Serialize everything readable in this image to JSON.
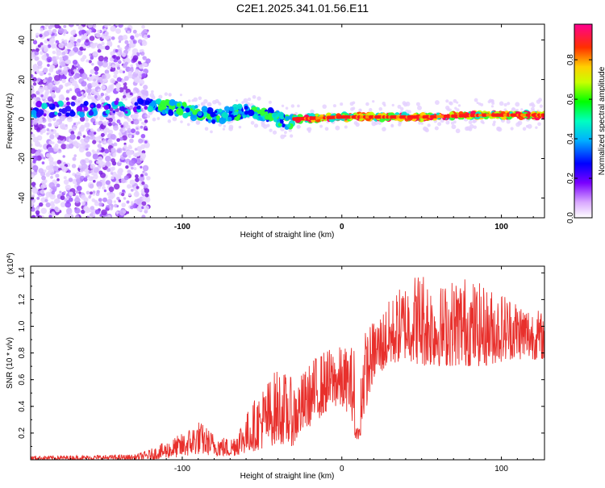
{
  "title": "C2E1.2025.341.01.56.E11",
  "chart_data": [
    {
      "type": "scatter",
      "name": "spectrogram",
      "xlabel": "Height of straight line (km)",
      "ylabel": "Frequency (Hz)",
      "xlim": [
        -195,
        127
      ],
      "ylim": [
        -50,
        48
      ],
      "xticks": [
        -100,
        0,
        100
      ],
      "yticks": [
        -40,
        -20,
        0,
        20,
        40
      ],
      "description_trend": [
        {
          "x": -190,
          "y": 5
        },
        {
          "x": -150,
          "y": 5
        },
        {
          "x": -120,
          "y": 7
        },
        {
          "x": -100,
          "y": 5
        },
        {
          "x": -80,
          "y": 1
        },
        {
          "x": -60,
          "y": 4
        },
        {
          "x": -45,
          "y": 2
        },
        {
          "x": -35,
          "y": -2
        },
        {
          "x": -30,
          "y": 0
        },
        {
          "x": 0,
          "y": 1
        },
        {
          "x": 50,
          "y": 1
        },
        {
          "x": 90,
          "y": 2
        },
        {
          "x": 127,
          "y": 2
        }
      ],
      "colorbar": {
        "label": "Normalized spectral amplitude",
        "ticks": [
          "0.0",
          "0.2",
          "0.4",
          "0.6",
          "0.8"
        ],
        "range": [
          0,
          0.98
        ]
      }
    },
    {
      "type": "line",
      "name": "snr",
      "xlabel": "Height of straight line (km)",
      "ylabel": "SNR (10 * v/v)",
      "exponent_label": "(x10",
      "exponent_sup": "4",
      "exponent_close": ")",
      "xlim": [
        -195,
        127
      ],
      "ylim": [
        0,
        1.45
      ],
      "xticks": [
        -100,
        0,
        100
      ],
      "yticks": [
        0.2,
        0.4,
        0.6,
        0.8,
        1.0,
        1.2,
        1.4
      ],
      "ytick_labels": [
        "0.2",
        "0.4",
        "0.6",
        "0.8",
        "1.0",
        "1.2",
        "1.4"
      ],
      "color": "#e8302c",
      "envelope": [
        {
          "x": -195,
          "lo": 0.0,
          "hi": 0.03
        },
        {
          "x": -130,
          "lo": 0.0,
          "hi": 0.04
        },
        {
          "x": -120,
          "lo": 0.0,
          "hi": 0.08
        },
        {
          "x": -100,
          "lo": 0.02,
          "hi": 0.2
        },
        {
          "x": -90,
          "lo": 0.04,
          "hi": 0.3
        },
        {
          "x": -80,
          "lo": 0.03,
          "hi": 0.2
        },
        {
          "x": -70,
          "lo": 0.02,
          "hi": 0.16
        },
        {
          "x": -60,
          "lo": 0.05,
          "hi": 0.35
        },
        {
          "x": -50,
          "lo": 0.08,
          "hi": 0.55
        },
        {
          "x": -40,
          "lo": 0.12,
          "hi": 0.7
        },
        {
          "x": -30,
          "lo": 0.1,
          "hi": 0.6
        },
        {
          "x": -25,
          "lo": 0.2,
          "hi": 0.65
        },
        {
          "x": -15,
          "lo": 0.3,
          "hi": 0.8
        },
        {
          "x": -5,
          "lo": 0.4,
          "hi": 0.85
        },
        {
          "x": 5,
          "lo": 0.35,
          "hi": 0.85
        },
        {
          "x": 10,
          "lo": 0.15,
          "hi": 0.9
        },
        {
          "x": 20,
          "lo": 0.6,
          "hi": 1.05
        },
        {
          "x": 30,
          "lo": 0.7,
          "hi": 1.2
        },
        {
          "x": 40,
          "lo": 0.75,
          "hi": 1.35
        },
        {
          "x": 50,
          "lo": 0.7,
          "hi": 1.45
        },
        {
          "x": 60,
          "lo": 0.7,
          "hi": 1.3
        },
        {
          "x": 75,
          "lo": 0.7,
          "hi": 1.4
        },
        {
          "x": 90,
          "lo": 0.7,
          "hi": 1.3
        },
        {
          "x": 105,
          "lo": 0.75,
          "hi": 1.25
        },
        {
          "x": 127,
          "lo": 0.75,
          "hi": 1.1
        }
      ]
    }
  ]
}
